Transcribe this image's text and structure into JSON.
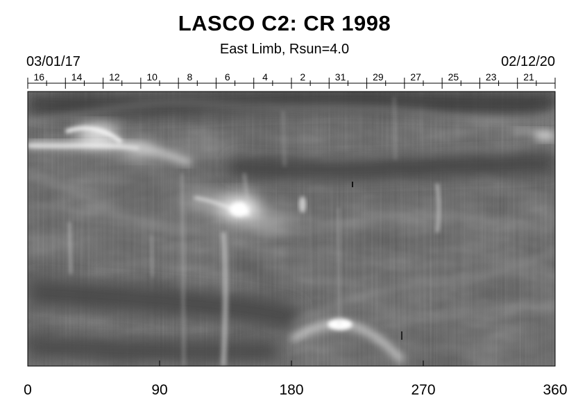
{
  "figure": {
    "title": "LASCO C2: CR 1998",
    "subtitle": "East Limb, Rsun=4.0",
    "start_date": "03/01/17",
    "end_date": "02/12/20",
    "colors": {
      "background": "#ffffff",
      "plot_base": "#5a5a5a",
      "text": "#000000"
    }
  },
  "chart_data": {
    "type": "heatmap",
    "x_ticks": [
      0,
      90,
      180,
      270,
      360
    ],
    "x_range": [
      0,
      360
    ],
    "day_labels": [
      "16",
      "14",
      "12",
      "10",
      "8",
      "6",
      "4",
      "2",
      "31",
      "29",
      "27",
      "25",
      "23",
      "21"
    ],
    "colormap": "grayscale"
  }
}
